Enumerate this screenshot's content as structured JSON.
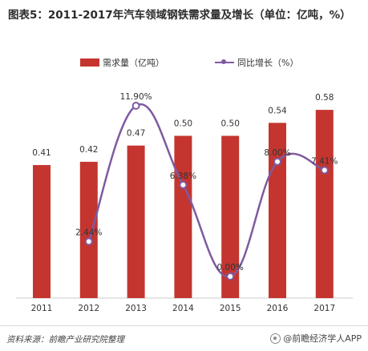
{
  "title": "图表5：2011-2017年汽车领域钢铁需求量及增长（单位：亿吨，%）",
  "footer": {
    "source": "资料来源：前瞻产业研究院整理",
    "brand": "@前瞻经济学人APP"
  },
  "colors": {
    "bar": "#c43530",
    "line": "#7e5aa0"
  },
  "chart_data": {
    "type": "bar",
    "categories": [
      "2011",
      "2012",
      "2013",
      "2014",
      "2015",
      "2016",
      "2017"
    ],
    "series": [
      {
        "name": "需求量（亿吨）",
        "type": "bar",
        "values": [
          0.41,
          0.42,
          0.47,
          0.5,
          0.5,
          0.54,
          0.58
        ],
        "labels": [
          "0.41",
          "0.42",
          "0.47",
          "0.50",
          "0.50",
          "0.54",
          "0.58"
        ]
      },
      {
        "name": "同比增长（%）",
        "type": "line",
        "values": [
          null,
          2.44,
          11.9,
          6.38,
          0.0,
          8.0,
          7.41
        ],
        "labels": [
          "",
          "2.44%",
          "11.90%",
          "6.38%",
          "0.00%",
          "8.00%",
          "7.41%"
        ]
      }
    ],
    "legend_position": "top-center",
    "grid": false
  }
}
